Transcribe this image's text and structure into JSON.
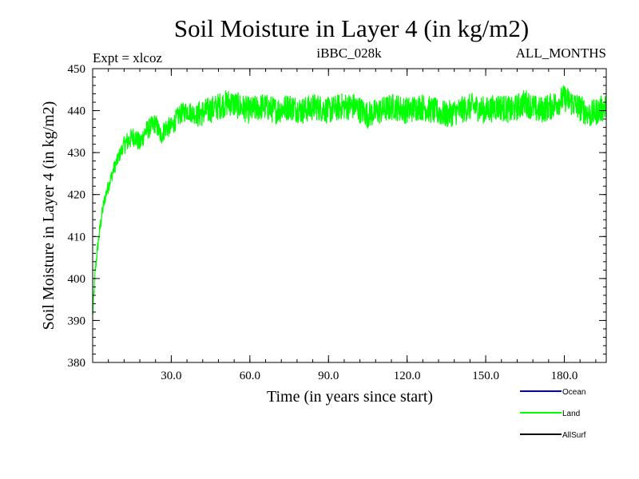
{
  "chart_data": {
    "type": "line",
    "title": "Soil Moisture in Layer 4 (in kg/m2)",
    "subtitle_left": "Expt = xlcoz",
    "subtitle_center": "iBBC_028k",
    "subtitle_right": "ALL_MONTHS",
    "xlabel": "Time (in years since start)",
    "ylabel": "Soil Moisture in Layer 4 (in kg/m2)",
    "xlim": [
      0,
      196
    ],
    "ylim": [
      380,
      450
    ],
    "x_ticks": [
      30,
      60,
      90,
      120,
      150,
      180
    ],
    "x_tick_labels": [
      "30.0",
      "60.0",
      "90.0",
      "120.0",
      "150.0",
      "180.0"
    ],
    "y_ticks": [
      380,
      390,
      400,
      410,
      420,
      430,
      440,
      450
    ],
    "y_tick_labels": [
      "380",
      "390",
      "400",
      "410",
      "420",
      "430",
      "440",
      "450"
    ],
    "legend": [
      {
        "name": "Ocean",
        "color": "#0000cc"
      },
      {
        "name": "Land",
        "color": "#00ff00"
      },
      {
        "name": "AllSurf",
        "color": "#000000"
      }
    ],
    "series": [
      {
        "name": "Land",
        "color": "#00ff00",
        "x": [
          0,
          1,
          2,
          3,
          4,
          5,
          6,
          7,
          8,
          10,
          12,
          14,
          16,
          18,
          20,
          22,
          24,
          26,
          28,
          30,
          33,
          36,
          40,
          44,
          48,
          52,
          56,
          60,
          65,
          70,
          75,
          80,
          85,
          90,
          95,
          100,
          105,
          110,
          115,
          120,
          125,
          130,
          135,
          140,
          145,
          150,
          155,
          160,
          165,
          170,
          175,
          180,
          185,
          190,
          196
        ],
        "y": [
          391,
          402,
          408,
          413,
          417,
          420,
          422,
          424,
          426,
          429,
          432,
          433,
          434,
          432,
          435,
          436,
          437,
          434,
          436,
          436,
          439,
          440,
          439,
          440,
          441,
          442,
          441,
          440,
          441,
          440,
          441,
          440,
          441,
          440,
          441,
          441,
          439,
          440,
          441,
          440,
          441,
          440,
          439,
          440,
          441,
          440,
          441,
          440,
          442,
          440,
          441,
          443,
          441,
          439,
          441
        ]
      }
    ]
  }
}
